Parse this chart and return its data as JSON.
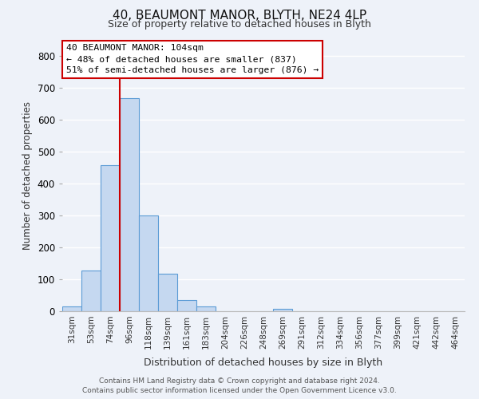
{
  "title": "40, BEAUMONT MANOR, BLYTH, NE24 4LP",
  "subtitle": "Size of property relative to detached houses in Blyth",
  "xlabel": "Distribution of detached houses by size in Blyth",
  "ylabel": "Number of detached properties",
  "bin_labels": [
    "31sqm",
    "53sqm",
    "74sqm",
    "96sqm",
    "118sqm",
    "139sqm",
    "161sqm",
    "183sqm",
    "204sqm",
    "226sqm",
    "248sqm",
    "269sqm",
    "291sqm",
    "312sqm",
    "334sqm",
    "356sqm",
    "377sqm",
    "399sqm",
    "421sqm",
    "442sqm",
    "464sqm"
  ],
  "bar_heights": [
    15,
    127,
    458,
    667,
    300,
    117,
    36,
    15,
    0,
    0,
    0,
    8,
    0,
    0,
    0,
    0,
    0,
    0,
    0,
    0,
    0
  ],
  "bar_color": "#c5d8f0",
  "bar_edge_color": "#5b9bd5",
  "annotation_lines": [
    "40 BEAUMONT MANOR: 104sqm",
    "← 48% of detached houses are smaller (837)",
    "51% of semi-detached houses are larger (876) →"
  ],
  "ylim": [
    0,
    850
  ],
  "yticks": [
    0,
    100,
    200,
    300,
    400,
    500,
    600,
    700,
    800
  ],
  "footer_line1": "Contains HM Land Registry data © Crown copyright and database right 2024.",
  "footer_line2": "Contains public sector information licensed under the Open Government Licence v3.0.",
  "background_color": "#eef2f9",
  "grid_color": "#ffffff"
}
